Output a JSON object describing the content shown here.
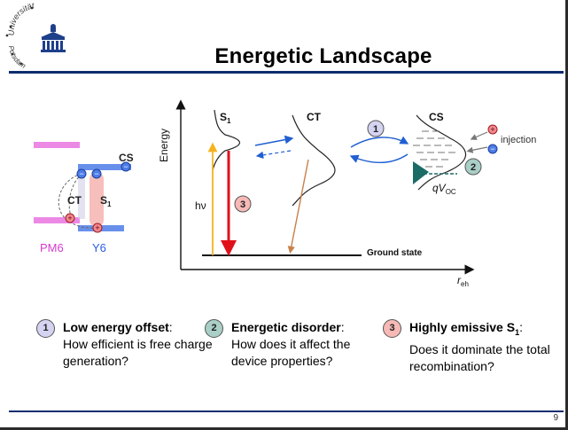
{
  "slide": {
    "title": "Energetic Landscape",
    "page_number": "9",
    "logo_text_top": "Universität",
    "logo_text_bottom": "Potsdam"
  },
  "left_diagram": {
    "labels": {
      "cs": "CS",
      "ct": "CT",
      "s1": "S",
      "s1_sub": "1",
      "donor": "PM6",
      "acceptor": "Y6"
    },
    "signs": {
      "minus": "−",
      "plus": "+"
    },
    "colors": {
      "pm6": "#e040d8",
      "y6": "#2a5ce0",
      "s1_fill": "#f3a9a6"
    }
  },
  "energy_diagram": {
    "y_axis_label": "Energy",
    "x_axis_label": "r",
    "x_axis_sub": "eh",
    "states": {
      "s1": "S",
      "s1_sub": "1",
      "ct": "CT",
      "cs": "CS"
    },
    "hv_label": "hν",
    "ground_state_label": "Ground state",
    "injection_label": "injection",
    "qvoc_label": "qV",
    "qvoc_sub": "OC",
    "markers": [
      "1",
      "2",
      "3"
    ],
    "colors": {
      "hv_arrow": "#f5b21e",
      "emission_arrow": "#e0101a",
      "transfer_arrow": "#1f5fd1",
      "ct_decay": "#c8804a",
      "ground": "#111111"
    }
  },
  "bottom_points": [
    {
      "num": "1",
      "head": "Low energy offset",
      "tail": ":",
      "body": "How efficient is free charge generation?"
    },
    {
      "num": "2",
      "head": "Energetic disorder",
      "tail": ":",
      "body": "How does it affect the device properties?"
    },
    {
      "num": "3",
      "head": "Highly emissive S",
      "head_sub": "1",
      "tail": ":",
      "body": "Does it dominate the total recombination?"
    }
  ]
}
